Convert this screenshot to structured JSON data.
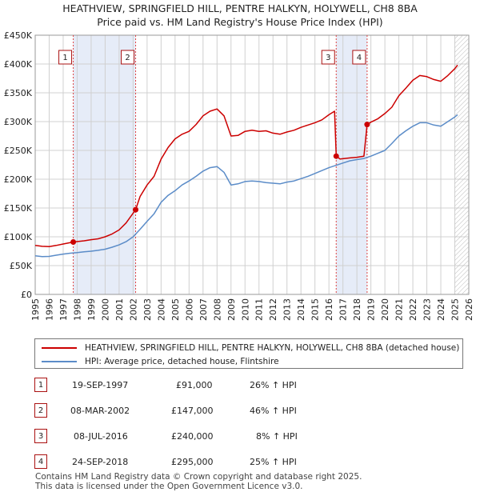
{
  "chart_data": {
    "type": "line",
    "title": "HEATHVIEW, SPRINGFIELD HILL, PENTRE HALKYN, HOLYWELL, CH8 8BA",
    "subtitle": "Price paid vs. HM Land Registry's House Price Index (HPI)",
    "xlim": [
      1995,
      2026
    ],
    "ylim": [
      0,
      450000
    ],
    "y_ticks": [
      {
        "value": 0,
        "label": "£0"
      },
      {
        "value": 50000,
        "label": "£50K"
      },
      {
        "value": 100000,
        "label": "£100K"
      },
      {
        "value": 150000,
        "label": "£150K"
      },
      {
        "value": 200000,
        "label": "£200K"
      },
      {
        "value": 250000,
        "label": "£250K"
      },
      {
        "value": 300000,
        "label": "£300K"
      },
      {
        "value": 350000,
        "label": "£350K"
      },
      {
        "value": 400000,
        "label": "£400K"
      },
      {
        "value": 450000,
        "label": "£450K"
      }
    ],
    "x_ticks": [
      "1995",
      "1996",
      "1997",
      "1998",
      "1999",
      "2000",
      "2001",
      "2002",
      "2003",
      "2004",
      "2005",
      "2006",
      "2007",
      "2008",
      "2009",
      "2010",
      "2011",
      "2012",
      "2013",
      "2014",
      "2015",
      "2016",
      "2017",
      "2018",
      "2019",
      "2020",
      "2021",
      "2022",
      "2023",
      "2024",
      "2025",
      "2026"
    ],
    "shaded_periods": [
      [
        1997.72,
        2002.18
      ],
      [
        2016.52,
        2018.73
      ]
    ],
    "forecast_start": 2025.0,
    "series": [
      {
        "name": "HEATHVIEW, SPRINGFIELD HILL, PENTRE HALKYN, HOLYWELL, CH8 8BA (detached house)",
        "color": "#cc0000",
        "points": [
          [
            1995.0,
            85000
          ],
          [
            1995.5,
            83500
          ],
          [
            1996.0,
            83000
          ],
          [
            1996.5,
            85000
          ],
          [
            1997.0,
            87500
          ],
          [
            1997.72,
            91000
          ],
          [
            1998.5,
            93000
          ],
          [
            1999.0,
            95000
          ],
          [
            1999.5,
            96500
          ],
          [
            2000.0,
            100000
          ],
          [
            2000.5,
            105000
          ],
          [
            2001.0,
            112000
          ],
          [
            2001.5,
            124000
          ],
          [
            2002.18,
            147000
          ],
          [
            2002.5,
            170000
          ],
          [
            2003.0,
            190000
          ],
          [
            2003.5,
            205000
          ],
          [
            2004.0,
            235000
          ],
          [
            2004.5,
            255000
          ],
          [
            2005.0,
            270000
          ],
          [
            2005.5,
            278000
          ],
          [
            2006.0,
            283000
          ],
          [
            2006.5,
            295000
          ],
          [
            2007.0,
            310000
          ],
          [
            2007.5,
            318000
          ],
          [
            2008.0,
            322000
          ],
          [
            2008.5,
            310000
          ],
          [
            2009.0,
            275000
          ],
          [
            2009.5,
            276000
          ],
          [
            2010.0,
            283000
          ],
          [
            2010.5,
            285000
          ],
          [
            2011.0,
            283000
          ],
          [
            2011.5,
            284000
          ],
          [
            2012.0,
            280000
          ],
          [
            2012.5,
            278000
          ],
          [
            2013.0,
            282000
          ],
          [
            2013.5,
            285000
          ],
          [
            2014.0,
            290000
          ],
          [
            2014.5,
            294000
          ],
          [
            2015.0,
            298000
          ],
          [
            2015.5,
            303000
          ],
          [
            2016.0,
            312000
          ],
          [
            2016.4,
            318000
          ],
          [
            2016.52,
            240000
          ],
          [
            2016.8,
            235000
          ],
          [
            2017.5,
            237000
          ],
          [
            2018.0,
            238000
          ],
          [
            2018.5,
            240000
          ],
          [
            2018.73,
            295000
          ],
          [
            2019.0,
            299000
          ],
          [
            2019.5,
            305000
          ],
          [
            2020.0,
            314000
          ],
          [
            2020.5,
            325000
          ],
          [
            2021.0,
            345000
          ],
          [
            2021.5,
            358000
          ],
          [
            2022.0,
            372000
          ],
          [
            2022.5,
            380000
          ],
          [
            2023.0,
            378000
          ],
          [
            2023.5,
            373000
          ],
          [
            2024.0,
            370000
          ],
          [
            2024.5,
            380000
          ],
          [
            2025.0,
            392000
          ],
          [
            2025.2,
            398000
          ]
        ]
      },
      {
        "name": "HPI: Average price, detached house, Flintshire",
        "color": "#5b8cc8",
        "points": [
          [
            1995.0,
            67000
          ],
          [
            1995.5,
            65500
          ],
          [
            1996.0,
            66000
          ],
          [
            1996.5,
            68000
          ],
          [
            1997.0,
            70000
          ],
          [
            1997.5,
            71500
          ],
          [
            1998.0,
            72500
          ],
          [
            1998.5,
            74000
          ],
          [
            1999.0,
            75000
          ],
          [
            1999.5,
            76500
          ],
          [
            2000.0,
            78500
          ],
          [
            2000.5,
            82000
          ],
          [
            2001.0,
            86000
          ],
          [
            2001.5,
            91500
          ],
          [
            2002.0,
            100000
          ],
          [
            2002.5,
            113000
          ],
          [
            2003.0,
            127000
          ],
          [
            2003.5,
            140000
          ],
          [
            2004.0,
            160000
          ],
          [
            2004.5,
            172000
          ],
          [
            2005.0,
            180000
          ],
          [
            2005.5,
            190000
          ],
          [
            2006.0,
            197000
          ],
          [
            2006.5,
            205000
          ],
          [
            2007.0,
            214000
          ],
          [
            2007.5,
            220000
          ],
          [
            2008.0,
            222000
          ],
          [
            2008.5,
            212000
          ],
          [
            2009.0,
            190000
          ],
          [
            2009.5,
            192000
          ],
          [
            2010.0,
            196000
          ],
          [
            2010.5,
            197000
          ],
          [
            2011.0,
            196000
          ],
          [
            2011.5,
            194000
          ],
          [
            2012.0,
            193000
          ],
          [
            2012.5,
            192000
          ],
          [
            2013.0,
            195000
          ],
          [
            2013.5,
            197000
          ],
          [
            2014.0,
            201000
          ],
          [
            2014.5,
            205000
          ],
          [
            2015.0,
            210000
          ],
          [
            2015.5,
            215000
          ],
          [
            2016.0,
            220000
          ],
          [
            2016.5,
            224000
          ],
          [
            2017.0,
            228000
          ],
          [
            2017.5,
            232000
          ],
          [
            2018.0,
            234000
          ],
          [
            2018.5,
            236000
          ],
          [
            2019.0,
            240000
          ],
          [
            2019.5,
            245000
          ],
          [
            2020.0,
            250000
          ],
          [
            2020.5,
            262000
          ],
          [
            2021.0,
            275000
          ],
          [
            2021.5,
            284000
          ],
          [
            2022.0,
            292000
          ],
          [
            2022.5,
            298000
          ],
          [
            2023.0,
            298000
          ],
          [
            2023.5,
            294000
          ],
          [
            2024.0,
            292000
          ],
          [
            2024.5,
            300000
          ],
          [
            2025.0,
            308000
          ],
          [
            2025.2,
            312000
          ]
        ]
      }
    ],
    "sales": [
      {
        "id": "1",
        "date": "19-SEP-1997",
        "price": "£91,000",
        "hpi": "26% ↑ HPI",
        "x": 1997.72,
        "y": 91000
      },
      {
        "id": "2",
        "date": "08-MAR-2002",
        "price": "£147,000",
        "hpi": "46% ↑ HPI",
        "x": 2002.18,
        "y": 147000
      },
      {
        "id": "3",
        "date": "08-JUL-2016",
        "price": "£240,000",
        "hpi": "8% ↑ HPI",
        "x": 2016.52,
        "y": 240000
      },
      {
        "id": "4",
        "date": "24-SEP-2018",
        "price": "£295,000",
        "hpi": "25% ↑ HPI",
        "x": 2018.73,
        "y": 295000
      }
    ]
  },
  "legend": {
    "property_label": "HEATHVIEW, SPRINGFIELD HILL, PENTRE HALKYN, HOLYWELL, CH8 8BA (detached house)",
    "hpi_label": "HPI: Average price, detached house, Flintshire"
  },
  "footer": {
    "line1": "Contains HM Land Registry data © Crown copyright and database right 2025.",
    "line2": "This data is licensed under the Open Government Licence v3.0."
  },
  "colors": {
    "property": "#cc0000",
    "hpi": "#5b8cc8",
    "shade": "#e6ecf8",
    "grid": "#d0d0d0"
  }
}
